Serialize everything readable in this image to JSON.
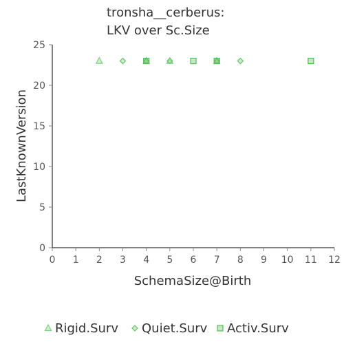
{
  "chart_data": {
    "type": "scatter",
    "title_lines": [
      "tronsha__cerberus:",
      "LKV over Sc.Size"
    ],
    "xlabel": "SchemaSize@Birth",
    "ylabel": "LastKnownVersion",
    "xlim": [
      0,
      12
    ],
    "ylim": [
      0,
      25
    ],
    "x_ticks": [
      "0",
      "1",
      "2",
      "3",
      "4",
      "5",
      "6",
      "7",
      "8",
      "9",
      "10",
      "11",
      "12"
    ],
    "y_ticks": [
      "0",
      "5",
      "10",
      "15",
      "20",
      "25"
    ],
    "grid": false,
    "legend_position": "bottom",
    "series": [
      {
        "name": "Rigid.Surv",
        "marker": "triangle",
        "color": "#7fcf7f",
        "points": [
          [
            2,
            23
          ],
          [
            4,
            23
          ],
          [
            5,
            23
          ],
          [
            7,
            23
          ]
        ]
      },
      {
        "name": "Quiet.Surv",
        "marker": "diamond",
        "color": "#6cc36c",
        "points": [
          [
            3,
            23
          ],
          [
            4,
            23
          ],
          [
            5,
            23
          ],
          [
            7,
            23
          ],
          [
            8,
            23
          ]
        ]
      },
      {
        "name": "Activ.Surv",
        "marker": "square",
        "color": "#5cb85c",
        "points": [
          [
            4,
            23
          ],
          [
            6,
            23
          ],
          [
            7,
            23
          ],
          [
            11,
            23
          ]
        ]
      }
    ]
  }
}
